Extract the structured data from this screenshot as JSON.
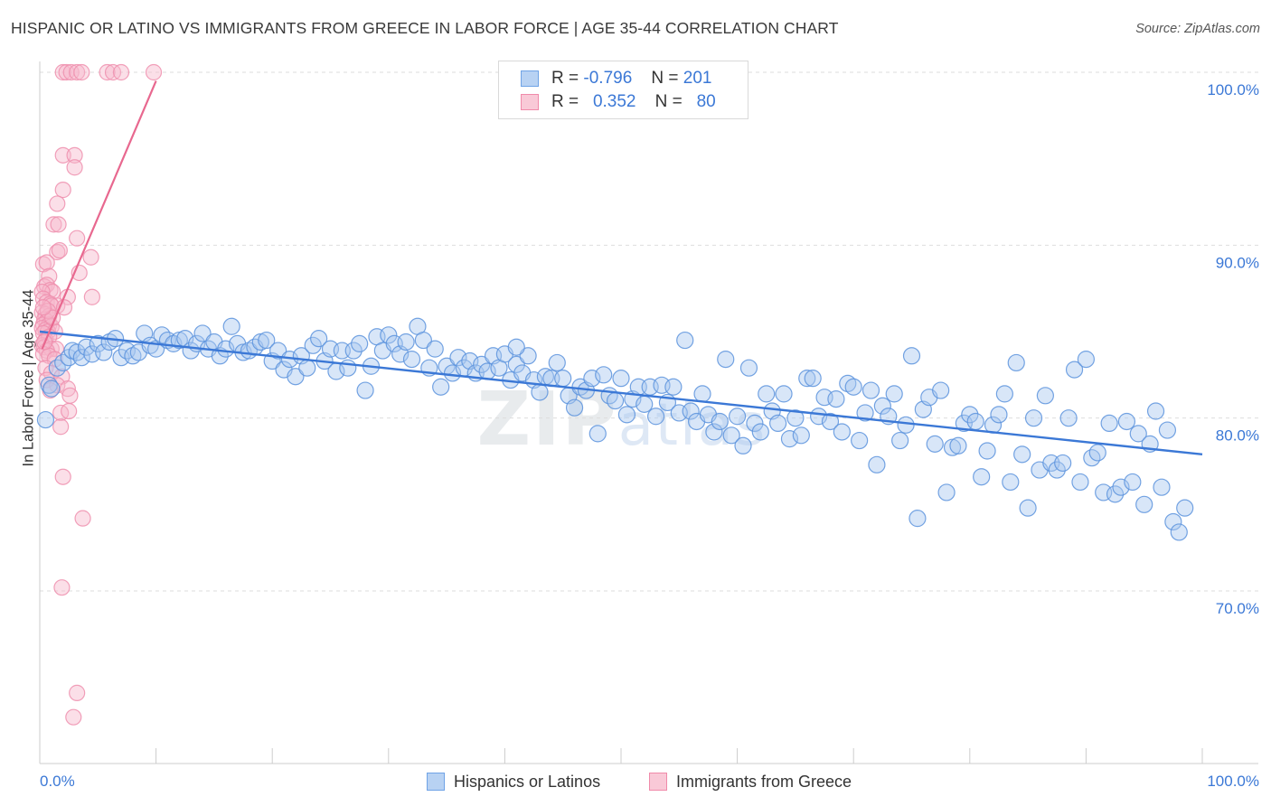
{
  "title": "HISPANIC OR LATINO VS IMMIGRANTS FROM GREECE IN LABOR FORCE | AGE 35-44 CORRELATION CHART",
  "source": "Source: ZipAtlas.com",
  "watermark": "ZIPatlas",
  "legend": {
    "rows": [
      {
        "r_label": "R =",
        "r_value": "-0.796",
        "n_label": "N =",
        "n_value": "201",
        "color": "#6fa3e6"
      },
      {
        "r_label": "R =",
        "r_value": "0.352",
        "n_label": "N =",
        "n_value": "80",
        "color": "#f08aaa"
      }
    ]
  },
  "colors": {
    "blue": "#3b78d6",
    "blue_fill": "#a9c8f0",
    "pink": "#e8688f",
    "pink_fill": "#f6b8cb",
    "grid": "#dddddd"
  },
  "chart_data": {
    "type": "scatter",
    "title": "HISPANIC OR LATINO VS IMMIGRANTS FROM GREECE IN LABOR FORCE | AGE 35-44 CORRELATION CHART",
    "xlabel": "",
    "ylabel": "In Labor Force | Age 35-44",
    "xlim": [
      0,
      100
    ],
    "ylim": [
      60,
      100
    ],
    "x_tick_labels": [
      "0.0%",
      "100.0%"
    ],
    "y_ticks": [
      70,
      80,
      90,
      100
    ],
    "y_tick_labels": [
      "70.0%",
      "80.0%",
      "90.0%",
      "100.0%"
    ],
    "grid": true,
    "legend_position": "top-center",
    "series": [
      {
        "name": "Hispanics or Latinos",
        "color": "#3b78d6",
        "stats": {
          "R": -0.796,
          "N": 201
        },
        "trendline": {
          "x": [
            0,
            100
          ],
          "y": [
            85.0,
            77.9
          ]
        },
        "points": [
          [
            0.5,
            79.9
          ],
          [
            0.8,
            81.9
          ],
          [
            1.0,
            81.7
          ],
          [
            1.5,
            82.9
          ],
          [
            2.0,
            83.2
          ],
          [
            2.5,
            83.5
          ],
          [
            2.8,
            83.9
          ],
          [
            3.2,
            83.8
          ],
          [
            3.6,
            83.5
          ],
          [
            4.0,
            84.1
          ],
          [
            4.5,
            83.7
          ],
          [
            5.0,
            84.3
          ],
          [
            5.5,
            83.8
          ],
          [
            6.0,
            84.4
          ],
          [
            6.5,
            84.6
          ],
          [
            7.0,
            83.5
          ],
          [
            7.5,
            83.9
          ],
          [
            8.0,
            83.6
          ],
          [
            8.5,
            83.8
          ],
          [
            9.0,
            84.9
          ],
          [
            9.5,
            84.2
          ],
          [
            10.0,
            84.0
          ],
          [
            10.5,
            84.8
          ],
          [
            11.0,
            84.5
          ],
          [
            11.5,
            84.3
          ],
          [
            12.0,
            84.5
          ],
          [
            12.5,
            84.6
          ],
          [
            13.0,
            83.9
          ],
          [
            13.5,
            84.3
          ],
          [
            14.0,
            84.9
          ],
          [
            14.5,
            84.0
          ],
          [
            15.0,
            84.4
          ],
          [
            15.5,
            83.6
          ],
          [
            16.0,
            84.0
          ],
          [
            16.5,
            85.3
          ],
          [
            17.0,
            84.3
          ],
          [
            17.5,
            83.8
          ],
          [
            18.0,
            83.9
          ],
          [
            18.5,
            84.1
          ],
          [
            19.0,
            84.4
          ],
          [
            19.5,
            84.5
          ],
          [
            20.0,
            83.3
          ],
          [
            20.5,
            83.9
          ],
          [
            21.0,
            82.8
          ],
          [
            21.5,
            83.4
          ],
          [
            22.0,
            82.4
          ],
          [
            22.5,
            83.6
          ],
          [
            23.0,
            82.9
          ],
          [
            23.5,
            84.2
          ],
          [
            24.0,
            84.6
          ],
          [
            24.5,
            83.3
          ],
          [
            25.0,
            84.0
          ],
          [
            25.5,
            82.7
          ],
          [
            26.0,
            83.9
          ],
          [
            26.5,
            82.9
          ],
          [
            27.0,
            83.9
          ],
          [
            27.5,
            84.3
          ],
          [
            28.0,
            81.6
          ],
          [
            28.5,
            83.0
          ],
          [
            29.0,
            84.7
          ],
          [
            29.5,
            83.9
          ],
          [
            30.0,
            84.8
          ],
          [
            30.5,
            84.3
          ],
          [
            31.0,
            83.7
          ],
          [
            31.5,
            84.4
          ],
          [
            32.0,
            83.4
          ],
          [
            32.5,
            85.3
          ],
          [
            33.0,
            84.5
          ],
          [
            33.5,
            82.9
          ],
          [
            34.0,
            84.0
          ],
          [
            34.5,
            81.8
          ],
          [
            35.0,
            83.0
          ],
          [
            35.5,
            82.6
          ],
          [
            36.0,
            83.5
          ],
          [
            36.5,
            82.9
          ],
          [
            37.0,
            83.3
          ],
          [
            37.5,
            82.6
          ],
          [
            38.0,
            83.1
          ],
          [
            38.5,
            82.7
          ],
          [
            39.0,
            83.6
          ],
          [
            39.5,
            82.9
          ],
          [
            40.0,
            83.7
          ],
          [
            40.5,
            82.2
          ],
          [
            41.0,
            83.1
          ],
          [
            41.5,
            82.6
          ],
          [
            42.0,
            83.6
          ],
          [
            42.5,
            82.2
          ],
          [
            43.0,
            81.5
          ],
          [
            43.5,
            82.4
          ],
          [
            44.0,
            82.3
          ],
          [
            44.5,
            83.2
          ],
          [
            45.0,
            82.3
          ],
          [
            45.5,
            81.3
          ],
          [
            46.0,
            80.6
          ],
          [
            46.5,
            81.8
          ],
          [
            47.0,
            81.6
          ],
          [
            47.5,
            82.3
          ],
          [
            48.0,
            79.1
          ],
          [
            48.5,
            82.5
          ],
          [
            49.0,
            81.3
          ],
          [
            49.5,
            81.0
          ],
          [
            50.0,
            82.3
          ],
          [
            50.5,
            80.2
          ],
          [
            51.0,
            81.1
          ],
          [
            51.5,
            81.8
          ],
          [
            52.0,
            80.8
          ],
          [
            52.5,
            81.8
          ],
          [
            53.0,
            80.1
          ],
          [
            53.5,
            81.9
          ],
          [
            54.0,
            80.9
          ],
          [
            54.5,
            81.8
          ],
          [
            55.0,
            80.3
          ],
          [
            55.5,
            84.5
          ],
          [
            56.0,
            80.4
          ],
          [
            56.5,
            79.8
          ],
          [
            57.0,
            81.4
          ],
          [
            57.5,
            80.2
          ],
          [
            58.0,
            79.2
          ],
          [
            58.5,
            79.8
          ],
          [
            59.0,
            83.4
          ],
          [
            59.5,
            79.0
          ],
          [
            60.0,
            80.1
          ],
          [
            60.5,
            78.4
          ],
          [
            61.0,
            82.9
          ],
          [
            61.5,
            79.7
          ],
          [
            62.0,
            79.2
          ],
          [
            62.5,
            81.4
          ],
          [
            63.0,
            80.4
          ],
          [
            63.5,
            79.7
          ],
          [
            64.0,
            81.4
          ],
          [
            64.5,
            78.8
          ],
          [
            65.0,
            80.0
          ],
          [
            65.5,
            79.0
          ],
          [
            66.0,
            82.3
          ],
          [
            66.5,
            82.3
          ],
          [
            67.0,
            80.1
          ],
          [
            67.5,
            81.2
          ],
          [
            68.0,
            79.8
          ],
          [
            68.5,
            81.1
          ],
          [
            69.0,
            79.2
          ],
          [
            69.5,
            82.0
          ],
          [
            70.0,
            81.8
          ],
          [
            70.5,
            78.7
          ],
          [
            71.0,
            80.3
          ],
          [
            71.5,
            81.6
          ],
          [
            72.0,
            77.3
          ],
          [
            72.5,
            80.7
          ],
          [
            73.0,
            80.1
          ],
          [
            73.5,
            81.4
          ],
          [
            74.0,
            78.7
          ],
          [
            74.5,
            79.6
          ],
          [
            75.0,
            83.6
          ],
          [
            75.5,
            74.2
          ],
          [
            76.0,
            80.5
          ],
          [
            76.5,
            81.2
          ],
          [
            77.0,
            78.5
          ],
          [
            77.5,
            81.6
          ],
          [
            78.0,
            75.7
          ],
          [
            78.5,
            78.3
          ],
          [
            79.0,
            78.4
          ],
          [
            79.5,
            79.7
          ],
          [
            80.0,
            80.2
          ],
          [
            80.5,
            79.8
          ],
          [
            81.0,
            76.6
          ],
          [
            81.5,
            78.1
          ],
          [
            82.0,
            79.6
          ],
          [
            82.5,
            80.2
          ],
          [
            83.0,
            81.4
          ],
          [
            83.5,
            76.3
          ],
          [
            84.0,
            83.2
          ],
          [
            84.5,
            77.9
          ],
          [
            85.0,
            74.8
          ],
          [
            85.5,
            80.0
          ],
          [
            86.0,
            77.0
          ],
          [
            86.5,
            81.3
          ],
          [
            87.0,
            77.4
          ],
          [
            87.5,
            77.0
          ],
          [
            88.0,
            77.4
          ],
          [
            88.5,
            80.0
          ],
          [
            89.0,
            82.8
          ],
          [
            89.5,
            76.3
          ],
          [
            90.0,
            83.4
          ],
          [
            90.5,
            77.7
          ],
          [
            91.0,
            78.0
          ],
          [
            91.5,
            75.7
          ],
          [
            92.0,
            79.7
          ],
          [
            92.5,
            75.6
          ],
          [
            93.0,
            76.0
          ],
          [
            93.5,
            79.8
          ],
          [
            94.0,
            76.3
          ],
          [
            94.5,
            79.1
          ],
          [
            95.0,
            75.0
          ],
          [
            95.5,
            78.5
          ],
          [
            96.0,
            80.4
          ],
          [
            96.5,
            76.0
          ],
          [
            97.0,
            79.3
          ],
          [
            97.5,
            74.0
          ],
          [
            98.0,
            73.4
          ],
          [
            98.5,
            74.8
          ],
          [
            41.0,
            84.1
          ]
        ]
      },
      {
        "name": "Immigrants from Greece",
        "color": "#e8688f",
        "stats": {
          "R": 0.352,
          "N": 80
        },
        "trendline": {
          "x": [
            0.2,
            10.0
          ],
          "y": [
            84.0,
            99.5
          ]
        },
        "points": [
          [
            2.0,
            100
          ],
          [
            2.3,
            100
          ],
          [
            2.7,
            100
          ],
          [
            3.2,
            100
          ],
          [
            3.6,
            100
          ],
          [
            5.8,
            100
          ],
          [
            6.3,
            100
          ],
          [
            7.0,
            100
          ],
          [
            9.8,
            100
          ],
          [
            2.0,
            95.2
          ],
          [
            3.0,
            95.2
          ],
          [
            3.0,
            94.5
          ],
          [
            2.0,
            93.2
          ],
          [
            1.5,
            92.4
          ],
          [
            1.2,
            91.2
          ],
          [
            1.6,
            91.2
          ],
          [
            3.2,
            90.4
          ],
          [
            1.5,
            89.6
          ],
          [
            1.7,
            89.7
          ],
          [
            4.4,
            89.3
          ],
          [
            0.3,
            88.9
          ],
          [
            0.6,
            89.0
          ],
          [
            3.4,
            88.4
          ],
          [
            0.8,
            88.2
          ],
          [
            0.4,
            87.6
          ],
          [
            0.6,
            87.7
          ],
          [
            0.9,
            87.4
          ],
          [
            1.1,
            87.3
          ],
          [
            0.2,
            87.3
          ],
          [
            2.4,
            87.0
          ],
          [
            4.5,
            87.0
          ],
          [
            0.3,
            86.9
          ],
          [
            0.6,
            86.7
          ],
          [
            0.9,
            86.6
          ],
          [
            1.5,
            86.5
          ],
          [
            1.0,
            86.5
          ],
          [
            2.1,
            86.4
          ],
          [
            0.2,
            86.1
          ],
          [
            0.5,
            86.0
          ],
          [
            0.8,
            85.9
          ],
          [
            0.4,
            85.7
          ],
          [
            0.6,
            85.6
          ],
          [
            0.3,
            85.4
          ],
          [
            0.8,
            85.4
          ],
          [
            1.0,
            85.3
          ],
          [
            0.2,
            85.2
          ],
          [
            0.5,
            85.1
          ],
          [
            0.7,
            85.0
          ],
          [
            1.3,
            85.0
          ],
          [
            0.3,
            84.9
          ],
          [
            0.5,
            84.5
          ],
          [
            0.8,
            84.7
          ],
          [
            0.2,
            84.2
          ],
          [
            0.4,
            84.1
          ],
          [
            1.0,
            84.0
          ],
          [
            1.4,
            84.0
          ],
          [
            0.6,
            83.9
          ],
          [
            0.3,
            83.7
          ],
          [
            0.8,
            83.6
          ],
          [
            1.3,
            83.4
          ],
          [
            0.5,
            82.9
          ],
          [
            1.0,
            82.6
          ],
          [
            1.9,
            82.4
          ],
          [
            0.6,
            82.2
          ],
          [
            1.5,
            81.9
          ],
          [
            2.4,
            81.7
          ],
          [
            0.9,
            81.6
          ],
          [
            2.6,
            81.3
          ],
          [
            1.8,
            80.3
          ],
          [
            2.5,
            80.4
          ],
          [
            1.8,
            79.5
          ],
          [
            2.0,
            76.6
          ],
          [
            3.7,
            74.2
          ],
          [
            1.9,
            70.2
          ],
          [
            3.2,
            64.1
          ],
          [
            2.9,
            62.7
          ],
          [
            0.4,
            84.4
          ],
          [
            0.7,
            86.2
          ],
          [
            1.1,
            85.8
          ],
          [
            0.3,
            86.4
          ]
        ]
      }
    ]
  }
}
